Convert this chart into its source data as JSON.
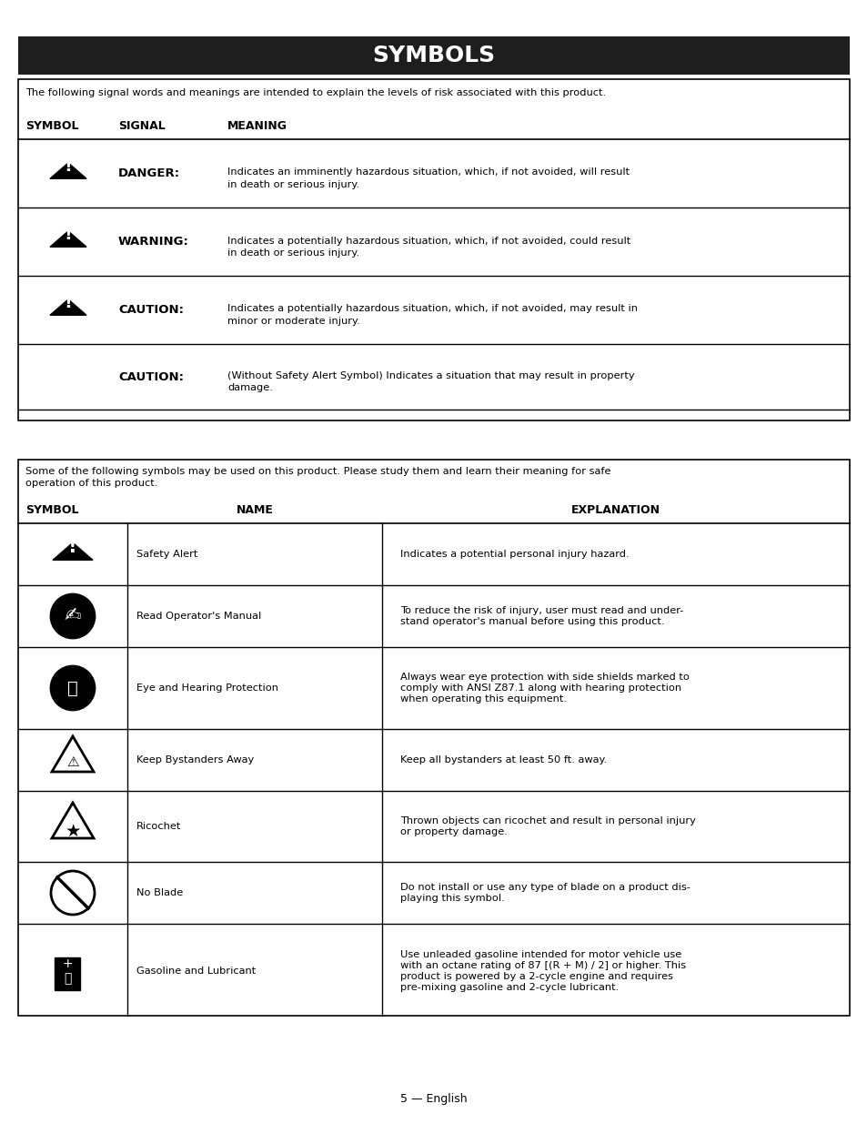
{
  "title": "SYMBOLS",
  "title_bg": "#1e1e1e",
  "title_color": "#ffffff",
  "page_bg": "#ffffff",
  "footer_text": "5 — English",
  "table1_intro": "The following signal words and meanings are intended to explain the levels of risk associated with this product.",
  "table1_headers": [
    "SYMBOL",
    "SIGNAL",
    "MEANING"
  ],
  "table1_rows": [
    {
      "has_symbol": true,
      "signal": "DANGER:",
      "meaning": "Indicates an imminently hazardous situation, which, if not avoided, will result\nin death or serious injury."
    },
    {
      "has_symbol": true,
      "signal": "WARNING:",
      "meaning": "Indicates a potentially hazardous situation, which, if not avoided, could result\nin death or serious injury."
    },
    {
      "has_symbol": true,
      "signal": "CAUTION:",
      "meaning": "Indicates a potentially hazardous situation, which, if not avoided, may result in\nminor or moderate injury."
    },
    {
      "has_symbol": false,
      "signal": "CAUTION:",
      "meaning": "(Without Safety Alert Symbol) Indicates a situation that may result in property\ndamage."
    }
  ],
  "table2_intro": "Some of the following symbols may be used on this product. Please study them and learn their meaning for safe\noperation of this product.",
  "table2_headers": [
    "SYMBOL",
    "NAME",
    "EXPLANATION"
  ],
  "table2_rows": [
    {
      "name": "Safety Alert",
      "explanation": "Indicates a potential personal injury hazard."
    },
    {
      "name": "Read Operator's Manual",
      "explanation": "To reduce the risk of injury, user must read and under-\nstand operator's manual before using this product."
    },
    {
      "name": "Eye and Hearing Protection",
      "explanation": "Always wear eye protection with side shields marked to\ncomply with ANSI Z87.1 along with hearing protection\nwhen operating this equipment."
    },
    {
      "name": "Keep Bystanders Away",
      "explanation": "Keep all bystanders at least 50 ft. away."
    },
    {
      "name": "Ricochet",
      "explanation": "Thrown objects can ricochet and result in personal injury\nor property damage."
    },
    {
      "name": "No Blade",
      "explanation": "Do not install or use any type of blade on a product dis-\nplaying this symbol."
    },
    {
      "name": "Gasoline and Lubricant",
      "explanation": "Use unleaded gasoline intended for motor vehicle use\nwith an octane rating of 87 [(R + M) / 2] or higher. This\nproduct is powered by a 2-cycle engine and requires\npre-mixing gasoline and 2-cycle lubricant."
    }
  ]
}
